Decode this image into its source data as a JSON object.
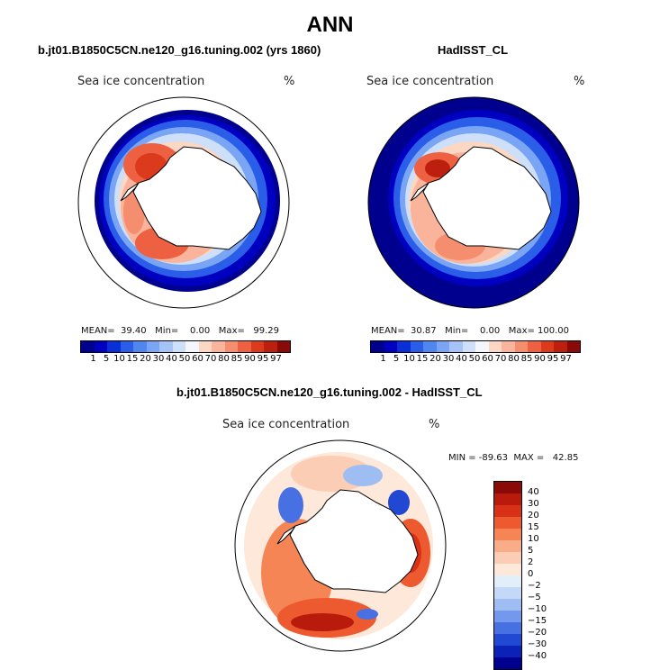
{
  "page": {
    "title": "ANN",
    "model_title": "b.jt01.B1850C5CN.ne120_g16.tuning.002 (yrs 1860)",
    "obs_title": "HadISST_CL",
    "diff_title": "b.jt01.B1850C5CN.ne120_g16.tuning.002 - HadISST_CL"
  },
  "panels": {
    "model": {
      "variable": "Sea ice concentration",
      "units": "%",
      "stats": "MEAN=  39.40   Min=    0.00   Max=   99.29"
    },
    "obs": {
      "variable": "Sea ice concentration",
      "units": "%",
      "stats": "MEAN=  30.87   Min=    0.00   Max= 100.00"
    },
    "diff": {
      "variable": "Sea ice concentration",
      "units": "%",
      "stats": "MIN = -89.63  MAX =   42.85"
    }
  },
  "colorbar_abs": {
    "labels": [
      "1",
      "5",
      "10",
      "15",
      "20",
      "30",
      "40",
      "50",
      "60",
      "70",
      "80",
      "85",
      "90",
      "95",
      "97"
    ],
    "colors": [
      "#00008f",
      "#0000c0",
      "#0a2fd6",
      "#2a5ee8",
      "#4f86f0",
      "#7aa5f5",
      "#a6c3f7",
      "#cddff9",
      "#f4f6fb",
      "#fbd7c4",
      "#f9b49b",
      "#f58e6f",
      "#ee6042",
      "#dc3a1d",
      "#bd1f0e",
      "#8a0a08"
    ]
  },
  "colorbar_diff": {
    "labels": [
      "40",
      "30",
      "20",
      "15",
      "10",
      "5",
      "2",
      "0",
      "−2",
      "−5",
      "−10",
      "−15",
      "−20",
      "−30",
      "−40"
    ],
    "colors": [
      "#8a0a08",
      "#b81a0c",
      "#d93018",
      "#ee5a30",
      "#f68555",
      "#f9ac88",
      "#fbcdb4",
      "#fde8da",
      "#e3eefb",
      "#c4d8f7",
      "#9ebdf3",
      "#7299ee",
      "#4771e3",
      "#2148d3",
      "#0a22b5",
      "#00008f"
    ]
  },
  "map_colors": {
    "land": "#ffffff",
    "coast": "#000000",
    "ocean_zero": "#ffffff"
  }
}
